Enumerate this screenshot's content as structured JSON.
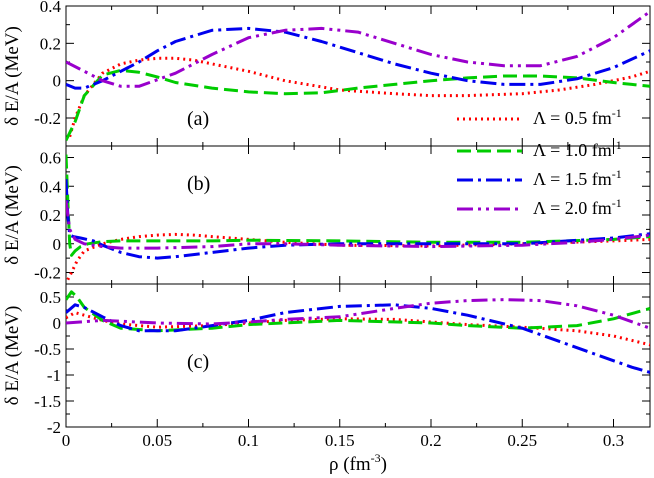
{
  "chart_data": [
    {
      "type": "line",
      "panel_label": "(a)",
      "ylabel": "δ E/A (MeV)",
      "xlim": [
        0,
        0.32
      ],
      "ylim": [
        -0.35,
        0.4
      ],
      "yticks": [
        -0.2,
        0,
        0.2,
        0.4
      ],
      "ytick_labels": [
        "-0.2",
        "0",
        "0.2",
        "0.4"
      ],
      "series": [
        {
          "name": "Λ = 0.5 fm",
          "name_sup": "-1",
          "color": "#ff0000",
          "dash": "dotted",
          "x": [
            0.002,
            0.005,
            0.01,
            0.02,
            0.03,
            0.04,
            0.05,
            0.06,
            0.07,
            0.08,
            0.1,
            0.12,
            0.15,
            0.18,
            0.2,
            0.22,
            0.25,
            0.27,
            0.29,
            0.31,
            0.32
          ],
          "y": [
            -0.3,
            -0.2,
            -0.08,
            0.04,
            0.09,
            0.11,
            0.12,
            0.12,
            0.11,
            0.09,
            0.05,
            0.0,
            -0.05,
            -0.07,
            -0.08,
            -0.08,
            -0.07,
            -0.05,
            -0.02,
            0.02,
            0.05
          ]
        },
        {
          "name": "Λ = 1.0 fm",
          "name_sup": "-1",
          "color": "#00cc00",
          "dash": "dashed",
          "x": [
            0.0,
            0.005,
            0.01,
            0.02,
            0.03,
            0.04,
            0.05,
            0.06,
            0.08,
            0.1,
            0.12,
            0.14,
            0.16,
            0.18,
            0.2,
            0.22,
            0.24,
            0.26,
            0.28,
            0.3,
            0.31,
            0.32
          ],
          "y": [
            -0.32,
            -0.22,
            -0.08,
            0.03,
            0.055,
            0.045,
            0.02,
            -0.01,
            -0.04,
            -0.06,
            -0.07,
            -0.065,
            -0.04,
            -0.02,
            0.0,
            0.015,
            0.025,
            0.025,
            0.015,
            -0.01,
            -0.02,
            -0.03
          ]
        },
        {
          "name": "Λ = 1.5 fm",
          "name_sup": "-1",
          "color": "#0000ee",
          "dash": "dashdot",
          "x": [
            0.0,
            0.005,
            0.01,
            0.02,
            0.03,
            0.04,
            0.05,
            0.06,
            0.08,
            0.1,
            0.12,
            0.14,
            0.16,
            0.18,
            0.2,
            0.22,
            0.24,
            0.26,
            0.28,
            0.3,
            0.32
          ],
          "y": [
            -0.02,
            -0.04,
            -0.04,
            0.0,
            0.05,
            0.1,
            0.16,
            0.21,
            0.27,
            0.28,
            0.26,
            0.21,
            0.15,
            0.09,
            0.04,
            0.0,
            -0.02,
            -0.02,
            0.01,
            0.07,
            0.16
          ]
        },
        {
          "name": "Λ = 2.0 fm",
          "name_sup": "-1",
          "color": "#9900cc",
          "dash": "dashdotdot",
          "x": [
            0.0,
            0.01,
            0.02,
            0.03,
            0.04,
            0.06,
            0.08,
            0.1,
            0.12,
            0.14,
            0.16,
            0.18,
            0.2,
            0.22,
            0.24,
            0.26,
            0.28,
            0.3,
            0.32
          ],
          "y": [
            0.1,
            0.05,
            0.0,
            -0.03,
            -0.03,
            0.04,
            0.14,
            0.23,
            0.27,
            0.28,
            0.26,
            0.2,
            0.14,
            0.1,
            0.08,
            0.08,
            0.13,
            0.23,
            0.37
          ]
        }
      ]
    },
    {
      "type": "line",
      "panel_label": "(b)",
      "ylabel": "δ E/A (MeV)",
      "xlim": [
        0,
        0.32
      ],
      "ylim": [
        -0.28,
        0.68
      ],
      "yticks": [
        -0.2,
        0,
        0.2,
        0.4,
        0.6
      ],
      "ytick_labels": [
        "-0.2",
        "0",
        "0.2",
        "0.4",
        "0.6"
      ],
      "series": [
        {
          "name": "Λ = 0.5 fm",
          "name_sup": "-1",
          "color": "#ff0000",
          "dash": "dotted",
          "x": [
            0.001,
            0.003,
            0.006,
            0.01,
            0.02,
            0.03,
            0.04,
            0.05,
            0.06,
            0.07,
            0.08,
            0.1,
            0.12,
            0.15,
            0.2,
            0.25,
            0.3,
            0.32
          ],
          "y": [
            -0.25,
            -0.2,
            -0.12,
            -0.05,
            0.0,
            0.03,
            0.05,
            0.06,
            0.065,
            0.06,
            0.05,
            0.03,
            0.01,
            -0.01,
            -0.015,
            0.0,
            0.02,
            0.03
          ]
        },
        {
          "name": "Λ = 1.0 fm",
          "name_sup": "-1",
          "color": "#00cc00",
          "dash": "dashed",
          "x": [
            0.0,
            0.001,
            0.002,
            0.003,
            0.005,
            0.008,
            0.012,
            0.02,
            0.03,
            0.05,
            0.08,
            0.1,
            0.15,
            0.2,
            0.25,
            0.3,
            0.32
          ],
          "y": [
            0.62,
            0.3,
            0.0,
            -0.08,
            -0.05,
            -0.02,
            0.0,
            0.015,
            0.02,
            0.02,
            0.02,
            0.025,
            0.02,
            0.01,
            0.01,
            0.03,
            0.05
          ]
        },
        {
          "name": "Λ = 1.5 fm",
          "name_sup": "-1",
          "color": "#0000ee",
          "dash": "dashdot",
          "x": [
            0.0,
            0.001,
            0.002,
            0.004,
            0.008,
            0.015,
            0.02,
            0.03,
            0.04,
            0.05,
            0.06,
            0.08,
            0.1,
            0.12,
            0.15,
            0.2,
            0.25,
            0.3,
            0.32
          ],
          "y": [
            0.45,
            0.2,
            0.06,
            0.05,
            0.04,
            0.02,
            -0.01,
            -0.06,
            -0.09,
            -0.1,
            -0.09,
            -0.06,
            -0.03,
            -0.01,
            0.0,
            0.0,
            0.0,
            0.04,
            0.07
          ]
        },
        {
          "name": "Λ = 2.0 fm",
          "name_sup": "-1",
          "color": "#9900cc",
          "dash": "dashdotdot",
          "x": [
            0.0,
            0.002,
            0.005,
            0.01,
            0.02,
            0.03,
            0.05,
            0.08,
            0.1,
            0.12,
            0.15,
            0.2,
            0.25,
            0.28,
            0.3,
            0.32
          ],
          "y": [
            0.3,
            0.1,
            0.03,
            0.0,
            -0.02,
            -0.03,
            -0.03,
            -0.02,
            0.0,
            0.0,
            -0.01,
            -0.02,
            -0.01,
            0.01,
            0.03,
            0.06
          ]
        }
      ]
    },
    {
      "type": "line",
      "panel_label": "(c)",
      "ylabel": "δ E/A (MeV)",
      "xlabel": "ρ (fm",
      "xlabel_sup": "-3",
      "xlabel_tail": ")",
      "xlim": [
        0,
        0.32
      ],
      "ylim": [
        -2,
        0.75
      ],
      "xticks": [
        0,
        0.05,
        0.1,
        0.15,
        0.2,
        0.25,
        0.3
      ],
      "xtick_labels": [
        "0",
        "0.05",
        "0.1",
        "0.15",
        "0.2",
        "0.25",
        "0.3"
      ],
      "yticks": [
        -2,
        -1.5,
        -1,
        -0.5,
        0,
        0.5
      ],
      "ytick_labels": [
        "-2",
        "-1.5",
        "-1",
        "-0.5",
        "0",
        "0.5"
      ],
      "series": [
        {
          "name": "Λ = 0.5 fm",
          "name_sup": "-1",
          "color": "#ff0000",
          "dash": "dotted",
          "x": [
            0.0,
            0.005,
            0.01,
            0.02,
            0.03,
            0.05,
            0.08,
            0.1,
            0.12,
            0.15,
            0.18,
            0.2,
            0.22,
            0.25,
            0.28,
            0.3,
            0.32
          ],
          "y": [
            0.1,
            0.2,
            0.15,
            0.05,
            -0.02,
            -0.08,
            -0.05,
            0.0,
            0.05,
            0.08,
            0.07,
            0.02,
            -0.03,
            -0.08,
            -0.15,
            -0.25,
            -0.42
          ]
        },
        {
          "name": "Λ = 1.0 fm",
          "name_sup": "-1",
          "color": "#00cc00",
          "dash": "dashed",
          "x": [
            0.0,
            0.003,
            0.006,
            0.01,
            0.02,
            0.03,
            0.05,
            0.08,
            0.1,
            0.15,
            0.2,
            0.22,
            0.25,
            0.28,
            0.3,
            0.32
          ],
          "y": [
            0.45,
            0.6,
            0.5,
            0.3,
            0.05,
            -0.1,
            -0.15,
            -0.1,
            -0.03,
            0.05,
            0.0,
            -0.05,
            -0.1,
            -0.05,
            0.08,
            0.28
          ]
        },
        {
          "name": "Λ = 1.5 fm",
          "name_sup": "-1",
          "color": "#0000ee",
          "dash": "dashdot",
          "x": [
            0.0,
            0.005,
            0.01,
            0.02,
            0.03,
            0.04,
            0.06,
            0.08,
            0.1,
            0.12,
            0.15,
            0.18,
            0.2,
            0.22,
            0.25,
            0.27,
            0.29,
            0.31,
            0.32
          ],
          "y": [
            0.2,
            0.35,
            0.3,
            0.12,
            -0.05,
            -0.15,
            -0.15,
            -0.05,
            0.05,
            0.2,
            0.32,
            0.35,
            0.28,
            0.15,
            -0.1,
            -0.35,
            -0.6,
            -0.85,
            -0.95
          ]
        },
        {
          "name": "Λ = 2.0 fm",
          "name_sup": "-1",
          "color": "#9900cc",
          "dash": "dashdotdot",
          "x": [
            0.0,
            0.02,
            0.05,
            0.08,
            0.1,
            0.12,
            0.15,
            0.18,
            0.2,
            0.22,
            0.24,
            0.26,
            0.28,
            0.3,
            0.32
          ],
          "y": [
            0.0,
            0.05,
            0.0,
            -0.02,
            0.02,
            0.07,
            0.12,
            0.28,
            0.38,
            0.43,
            0.45,
            0.43,
            0.33,
            0.15,
            -0.1
          ]
        }
      ]
    }
  ]
}
